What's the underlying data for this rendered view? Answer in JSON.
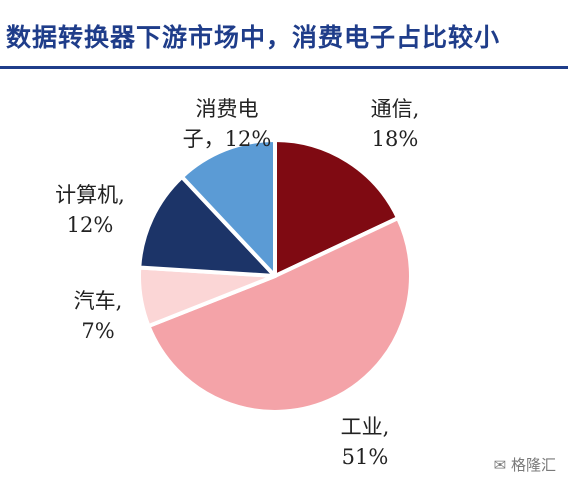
{
  "title": "数据转换器下游市场中，消费电子占比较小",
  "watermark": "格隆汇",
  "chart_data": {
    "type": "pie",
    "title": "数据转换器下游市场中，消费电子占比较小",
    "slices": [
      {
        "name": "通信",
        "value": 18,
        "label_line1": "通信,",
        "label_line2": "18%",
        "color": "#7f0a12"
      },
      {
        "name": "工业",
        "value": 51,
        "label_line1": "工业,",
        "label_line2": "51%",
        "color": "#f4a3a8"
      },
      {
        "name": "汽车",
        "value": 7,
        "label_line1": "汽车,",
        "label_line2": "7%",
        "color": "#fbd6d6"
      },
      {
        "name": "计算机",
        "value": 12,
        "label_line1": "计算机,",
        "label_line2": "12%",
        "color": "#1c3468"
      },
      {
        "name": "消费电子",
        "value": 12,
        "label_line1": "消费电",
        "label_line2": "子，12%",
        "color": "#5b9bd5"
      }
    ]
  }
}
